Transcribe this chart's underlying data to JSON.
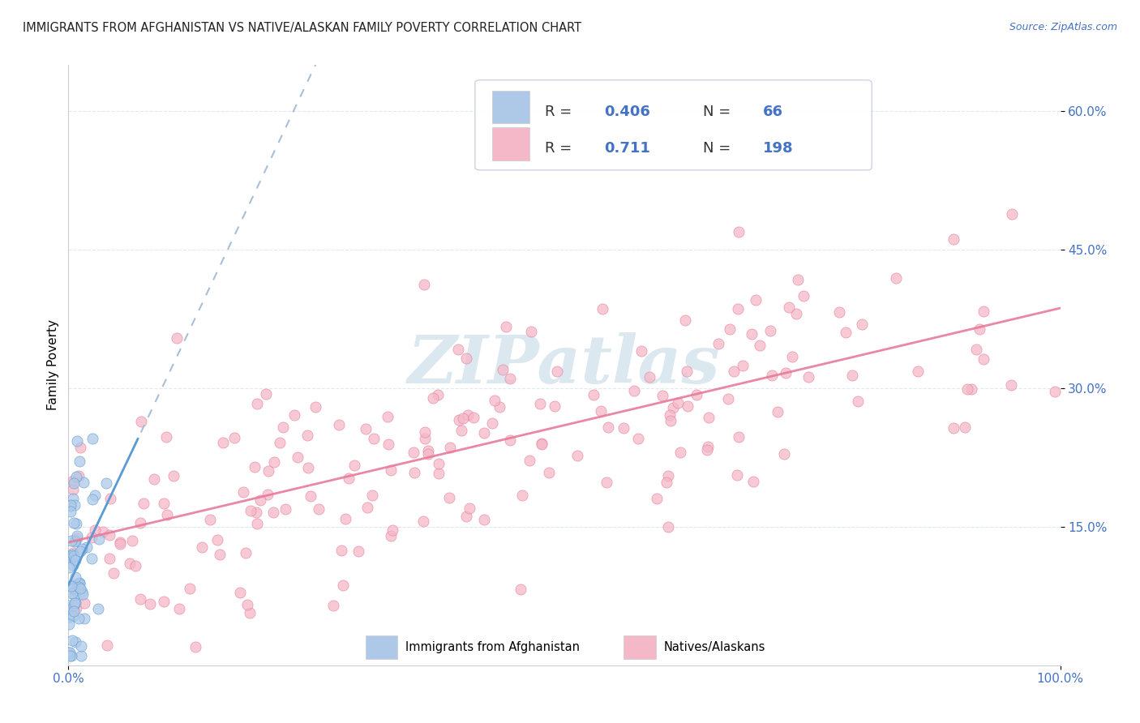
{
  "title": "IMMIGRANTS FROM AFGHANISTAN VS NATIVE/ALASKAN FAMILY POVERTY CORRELATION CHART",
  "source": "Source: ZipAtlas.com",
  "ylabel": "Family Poverty",
  "ytick_labels": [
    "15.0%",
    "30.0%",
    "45.0%",
    "60.0%"
  ],
  "ytick_values": [
    0.15,
    0.3,
    0.45,
    0.6
  ],
  "legend_label_1": "Immigrants from Afghanistan",
  "legend_label_2": "Natives/Alaskans",
  "R1": "0.406",
  "N1": "66",
  "R2": "0.711",
  "N2": "198",
  "color_blue_fill": "#aec9e8",
  "color_blue_edge": "#5b9bd5",
  "color_pink_fill": "#f4b8c8",
  "color_pink_edge": "#e87a9a",
  "color_trendline_blue": "#a0b8d0",
  "color_trendline_pink": "#e87a9a",
  "color_legend_text": "#4472c4",
  "watermark_color": "#dce8f0",
  "grid_color": "#e0e8f0",
  "tick_color": "#4472c4",
  "title_color": "#222222",
  "source_color": "#4472c4",
  "xlim": [
    0.0,
    1.0
  ],
  "ylim": [
    0.0,
    0.65
  ]
}
